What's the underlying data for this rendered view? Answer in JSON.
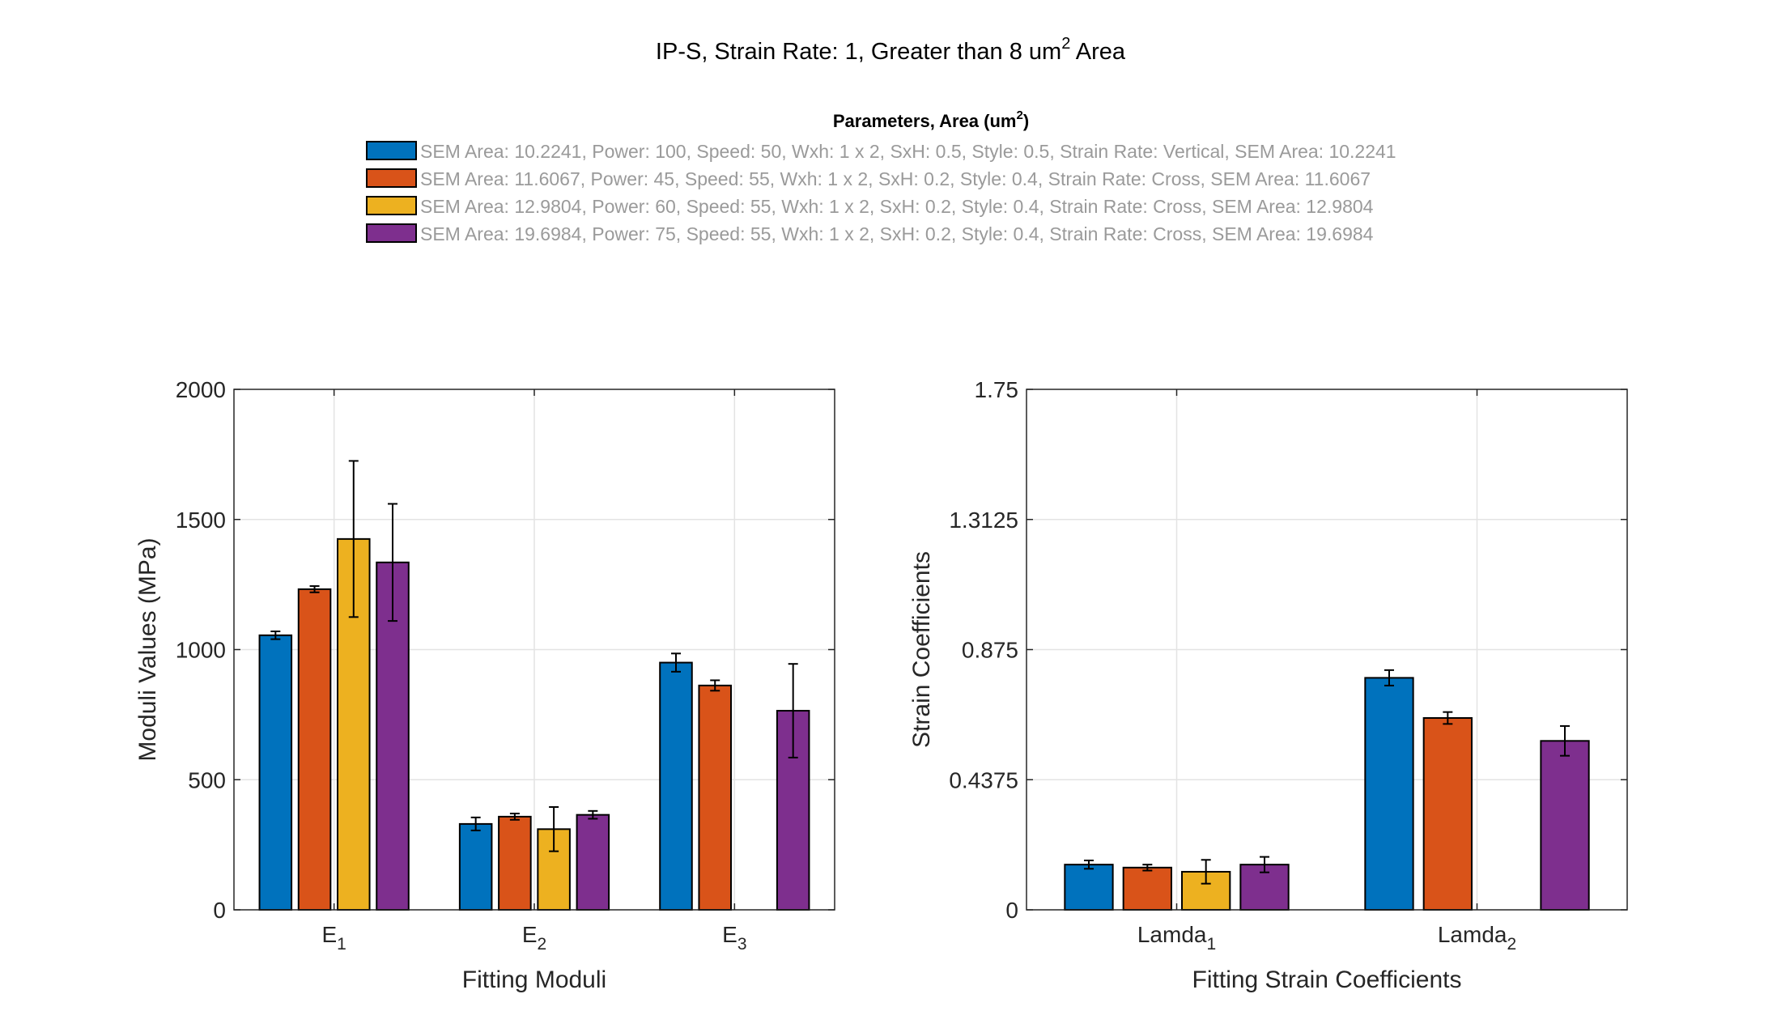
{
  "figure": {
    "title_main": "IP-S, Strain Rate: 1, Greater than 8 um",
    "title_sup": "2",
    "title_tail": " Area"
  },
  "legend": {
    "title_main": "Parameters, Area (um",
    "title_sup": "2",
    "title_tail": ")",
    "entries": [
      "SEM Area: 10.2241, Power: 100, Speed: 50, Wxh: 1 x 2, SxH: 0.5, Style: 0.5, Strain Rate: Vertical, SEM Area: 10.2241",
      "SEM Area: 11.6067, Power: 45, Speed: 55, Wxh: 1 x 2, SxH: 0.2, Style: 0.4, Strain Rate: Cross, SEM Area: 11.6067",
      "SEM Area: 12.9804, Power: 60, Speed: 55, Wxh: 1 x 2, SxH: 0.2, Style: 0.4, Strain Rate: Cross, SEM Area: 12.9804",
      "SEM Area: 19.6984, Power: 75, Speed: 55, Wxh: 1 x 2, SxH: 0.2, Style: 0.4, Strain Rate: Cross, SEM Area: 19.6984"
    ],
    "colors": [
      "#0072BD",
      "#D95319",
      "#EDB120",
      "#7E2F8E"
    ]
  },
  "chart_data": [
    {
      "type": "bar",
      "title": "",
      "xlabel": "Fitting Moduli",
      "ylabel": "Moduli Values (MPa)",
      "categories": [
        {
          "base": "E",
          "sub": "1"
        },
        {
          "base": "E",
          "sub": "2"
        },
        {
          "base": "E",
          "sub": "3"
        }
      ],
      "ylim": [
        0,
        2000
      ],
      "yticks": [
        0,
        500,
        1000,
        1500,
        2000
      ],
      "ytick_labels": [
        "0",
        "500",
        "1000",
        "1500",
        "2000"
      ],
      "grid": true,
      "series": [
        {
          "values": [
            1055,
            330,
            950
          ],
          "errors": [
            15,
            25,
            35
          ]
        },
        {
          "values": [
            1232,
            358,
            862
          ],
          "errors": [
            12,
            12,
            20
          ]
        },
        {
          "values": [
            1425,
            310,
            null
          ],
          "errors": [
            300,
            85,
            null
          ]
        },
        {
          "values": [
            1335,
            365,
            765
          ],
          "errors": [
            225,
            15,
            180
          ]
        }
      ]
    },
    {
      "type": "bar",
      "title": "",
      "xlabel": "Fitting Strain Coefficients",
      "ylabel": "Strain Coefficients",
      "categories": [
        {
          "base": "Lamda",
          "sub": "1"
        },
        {
          "base": "Lamda",
          "sub": "2"
        }
      ],
      "ylim": [
        0,
        1.75
      ],
      "yticks": [
        0,
        0.4375,
        0.875,
        1.3125,
        1.75
      ],
      "ytick_labels": [
        "0",
        "0.4375",
        "0.875",
        "1.3125",
        "1.75"
      ],
      "grid": true,
      "series": [
        {
          "values": [
            0.152,
            0.78
          ],
          "errors": [
            0.014,
            0.026
          ]
        },
        {
          "values": [
            0.142,
            0.645
          ],
          "errors": [
            0.01,
            0.02
          ]
        },
        {
          "values": [
            0.128,
            null
          ],
          "errors": [
            0.04,
            null
          ]
        },
        {
          "values": [
            0.152,
            0.568
          ],
          "errors": [
            0.026,
            0.05
          ]
        }
      ]
    }
  ]
}
